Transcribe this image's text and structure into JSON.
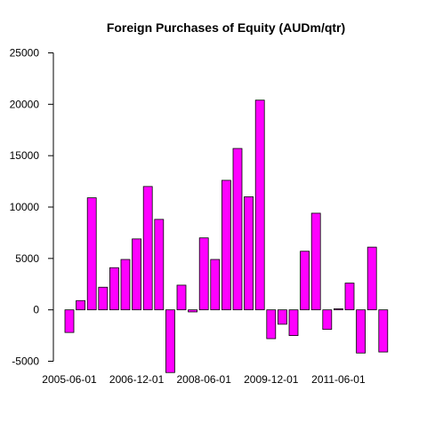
{
  "chart_data": {
    "type": "bar",
    "title": "Foreign Purchases of Equity (AUDm/qtr)",
    "xlabel": "",
    "ylabel": "",
    "ylim": [
      -6000,
      25000
    ],
    "y_ticks": [
      -5000,
      0,
      5000,
      10000,
      15000,
      20000,
      25000
    ],
    "y_tick_labels": [
      "-5000",
      "0",
      "5000",
      "10000",
      "15000",
      "20000",
      "25000"
    ],
    "x_tick_labels": [
      "2005-06-01",
      "2006-12-01",
      "2008-06-01",
      "2009-12-01",
      "2011-06-01"
    ],
    "x_tick_bar_index": [
      0,
      6,
      12,
      18,
      24
    ],
    "grid": false,
    "legend": "none",
    "bar_fill": "#ff00ff",
    "bar_stroke": "#000000",
    "values": [
      -2200,
      900,
      10900,
      2200,
      4100,
      4900,
      6900,
      12000,
      8800,
      -6100,
      2400,
      -200,
      7000,
      4900,
      12600,
      15700,
      11000,
      20400,
      -2800,
      -1400,
      -2500,
      5700,
      9400,
      -1900,
      100,
      2600,
      -4200,
      6100,
      -4100
    ]
  }
}
